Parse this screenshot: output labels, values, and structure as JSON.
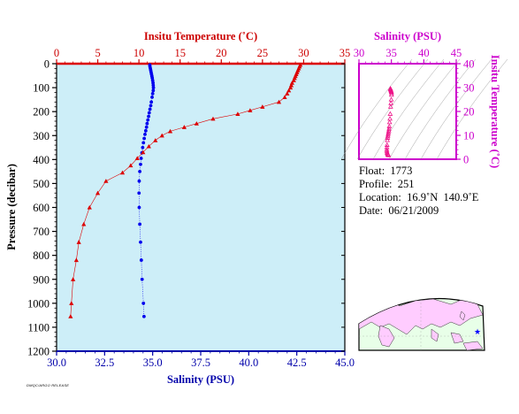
{
  "chart_data": [
    {
      "type": "line",
      "name_hint": "main-profile",
      "top_axis": {
        "label": "Insitu Temperature (˚C)",
        "range": [
          0,
          35
        ],
        "ticks": [
          "0",
          "5",
          "10",
          "15",
          "20",
          "25",
          "30",
          "35"
        ],
        "color": "#cc0000"
      },
      "bottom_axis": {
        "label": "Salinity (PSU)",
        "range": [
          30.0,
          45.0
        ],
        "ticks": [
          "30.0",
          "32.5",
          "35.0",
          "37.5",
          "40.0",
          "42.5",
          "45.0"
        ],
        "color": "#0000aa"
      },
      "left_axis": {
        "label": "Pressure (decibar)",
        "range": [
          0,
          1200
        ],
        "inverted": true,
        "ticks": [
          "0",
          "100",
          "200",
          "300",
          "400",
          "500",
          "600",
          "700",
          "800",
          "900",
          "1000",
          "1100",
          "1200"
        ],
        "color": "#000000"
      },
      "series": [
        {
          "key": "temperature",
          "color": "#dd0000",
          "marker": "triangle",
          "points": [
            [
              29.6,
              5
            ],
            [
              29.5,
              12
            ],
            [
              29.4,
              20
            ],
            [
              29.3,
              28
            ],
            [
              29.2,
              36
            ],
            [
              29.1,
              44
            ],
            [
              29.0,
              52
            ],
            [
              28.9,
              60
            ],
            [
              28.8,
              70
            ],
            [
              28.6,
              80
            ],
            [
              28.5,
              90
            ],
            [
              28.4,
              100
            ],
            [
              28.2,
              112
            ],
            [
              28.0,
              125
            ],
            [
              27.7,
              140
            ],
            [
              27.0,
              160
            ],
            [
              25.0,
              180
            ],
            [
              23.5,
              195
            ],
            [
              22.0,
              210
            ],
            [
              19.0,
              230
            ],
            [
              17.0,
              250
            ],
            [
              15.5,
              265
            ],
            [
              13.8,
              282
            ],
            [
              12.8,
              300
            ],
            [
              12.0,
              320
            ],
            [
              11.2,
              345
            ],
            [
              10.5,
              370
            ],
            [
              9.8,
              395
            ],
            [
              9.0,
              425
            ],
            [
              8.0,
              455
            ],
            [
              6.0,
              490
            ],
            [
              5.0,
              540
            ],
            [
              4.0,
              600
            ],
            [
              3.3,
              670
            ],
            [
              2.7,
              745
            ],
            [
              2.4,
              820
            ],
            [
              2.0,
              900
            ],
            [
              1.8,
              1000
            ],
            [
              1.7,
              1055
            ]
          ]
        },
        {
          "key": "salinity",
          "color": "#0000ee",
          "marker": "circle",
          "points": [
            [
              34.85,
              5
            ],
            [
              34.86,
              12
            ],
            [
              34.88,
              20
            ],
            [
              34.9,
              28
            ],
            [
              34.92,
              36
            ],
            [
              34.94,
              44
            ],
            [
              34.96,
              52
            ],
            [
              34.98,
              60
            ],
            [
              35.0,
              70
            ],
            [
              35.02,
              80
            ],
            [
              35.03,
              90
            ],
            [
              35.04,
              100
            ],
            [
              35.03,
              112
            ],
            [
              35.0,
              125
            ],
            [
              34.97,
              140
            ],
            [
              34.93,
              160
            ],
            [
              34.9,
              175
            ],
            [
              34.86,
              190
            ],
            [
              34.82,
              205
            ],
            [
              34.79,
              220
            ],
            [
              34.75,
              235
            ],
            [
              34.71,
              250
            ],
            [
              34.68,
              265
            ],
            [
              34.64,
              280
            ],
            [
              34.6,
              295
            ],
            [
              34.56,
              312
            ],
            [
              34.52,
              330
            ],
            [
              34.48,
              350
            ],
            [
              34.44,
              372
            ],
            [
              34.4,
              395
            ],
            [
              34.37,
              420
            ],
            [
              34.33,
              450
            ],
            [
              34.3,
              490
            ],
            [
              34.29,
              540
            ],
            [
              34.3,
              600
            ],
            [
              34.33,
              670
            ],
            [
              34.37,
              745
            ],
            [
              34.41,
              820
            ],
            [
              34.45,
              900
            ],
            [
              34.52,
              1000
            ],
            [
              34.55,
              1055
            ]
          ]
        }
      ]
    },
    {
      "type": "scatter",
      "name_hint": "ts-diagram",
      "top_axis": {
        "label": "Salinity (PSU)",
        "range": [
          30,
          45
        ],
        "ticks": [
          "30",
          "35",
          "40",
          "45"
        ],
        "color": "#cc00cc"
      },
      "right_axis": {
        "label": "Insitu Temperature (˚C)",
        "range": [
          0,
          40
        ],
        "ticks": [
          "0",
          "10",
          "20",
          "30",
          "40"
        ],
        "color": "#cc00cc"
      },
      "series": [
        {
          "key": "ts-points",
          "color": "#ee1188",
          "marker": "triangle",
          "points": [
            [
              34.85,
              29.6
            ],
            [
              34.88,
              29.3
            ],
            [
              34.92,
              29.0
            ],
            [
              34.96,
              28.6
            ],
            [
              35.0,
              28.2
            ],
            [
              35.03,
              27.7
            ],
            [
              35.02,
              27.0
            ],
            [
              34.98,
              25.0
            ],
            [
              34.93,
              23.5
            ],
            [
              34.88,
              22.0
            ],
            [
              34.82,
              19.0
            ],
            [
              34.78,
              17.0
            ],
            [
              34.72,
              15.5
            ],
            [
              34.68,
              13.8
            ],
            [
              34.64,
              12.8
            ],
            [
              34.6,
              12.0
            ],
            [
              34.55,
              11.2
            ],
            [
              34.5,
              10.5
            ],
            [
              34.46,
              9.8
            ],
            [
              34.42,
              9.0
            ],
            [
              34.38,
              8.0
            ],
            [
              34.33,
              6.0
            ],
            [
              34.3,
              5.0
            ],
            [
              34.29,
              4.0
            ],
            [
              34.31,
              3.3
            ],
            [
              34.35,
              2.7
            ],
            [
              34.4,
              2.4
            ],
            [
              34.45,
              2.0
            ],
            [
              34.52,
              1.8
            ],
            [
              34.55,
              1.7
            ]
          ]
        }
      ]
    }
  ],
  "float_info": {
    "float": "Float:  1773",
    "profile": "Profile:  251",
    "location": "Location:  16.9˚N  140.9˚E",
    "date": "Date:  06/21/2009"
  },
  "map": {
    "marker_lon": 140.9,
    "marker_lat": 16.9,
    "marker_color": "#0000ff",
    "land_color": "#ffccff",
    "ocean_color": "#e8ffe8"
  },
  "stamp_text": "DMQC/ARGO RELEASE"
}
